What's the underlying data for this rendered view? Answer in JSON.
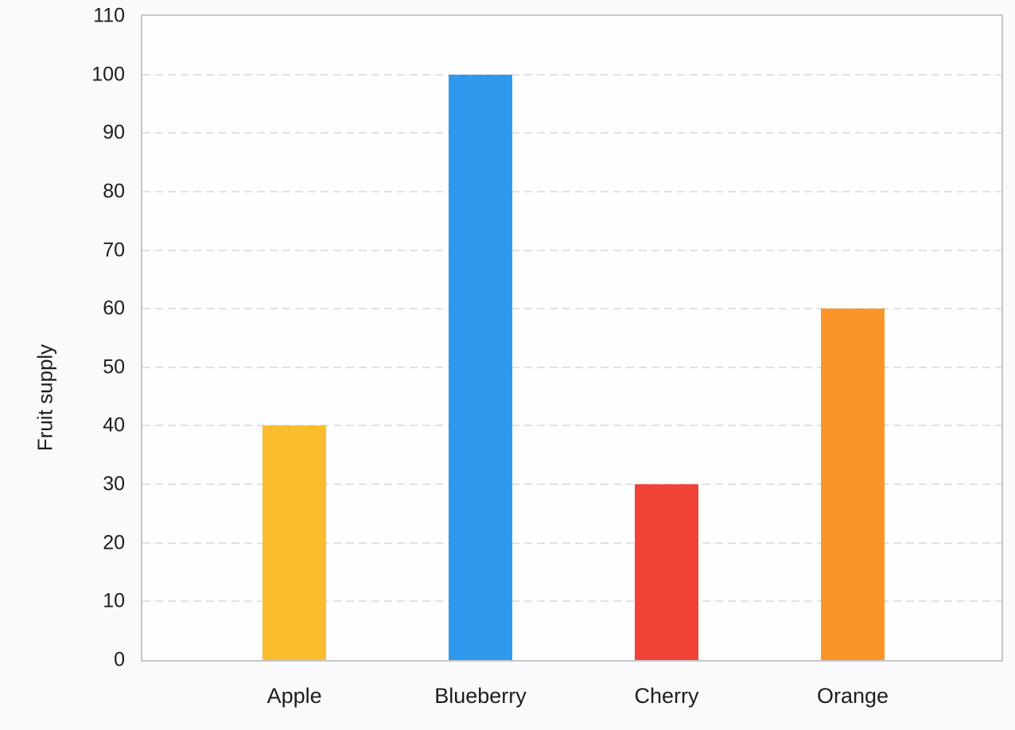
{
  "page": {
    "background_color": "#FAFAFD"
  },
  "chart_data": {
    "type": "bar",
    "title": "",
    "categories": [
      "Apple",
      "Blueberry",
      "Cherry",
      "Orange"
    ],
    "values": [
      40,
      100,
      30,
      60
    ],
    "bar_colors": [
      "#FBBD2E",
      "#2F9AED",
      "#F04237",
      "#FA9629"
    ],
    "xlabel": "",
    "ylabel": "Fruit supply",
    "ylim": [
      0,
      110
    ],
    "yticks": [
      0,
      10,
      20,
      30,
      40,
      50,
      60,
      70,
      80,
      90,
      100,
      110
    ],
    "grid": {
      "horizontal": true,
      "vertical": false,
      "style": "dashed",
      "color": "#E1E1E5"
    },
    "axis_frame_color": "#C6C6CB",
    "plot_background": "#FEFEFF",
    "text_color": "#1B1D21",
    "legend": "none"
  }
}
